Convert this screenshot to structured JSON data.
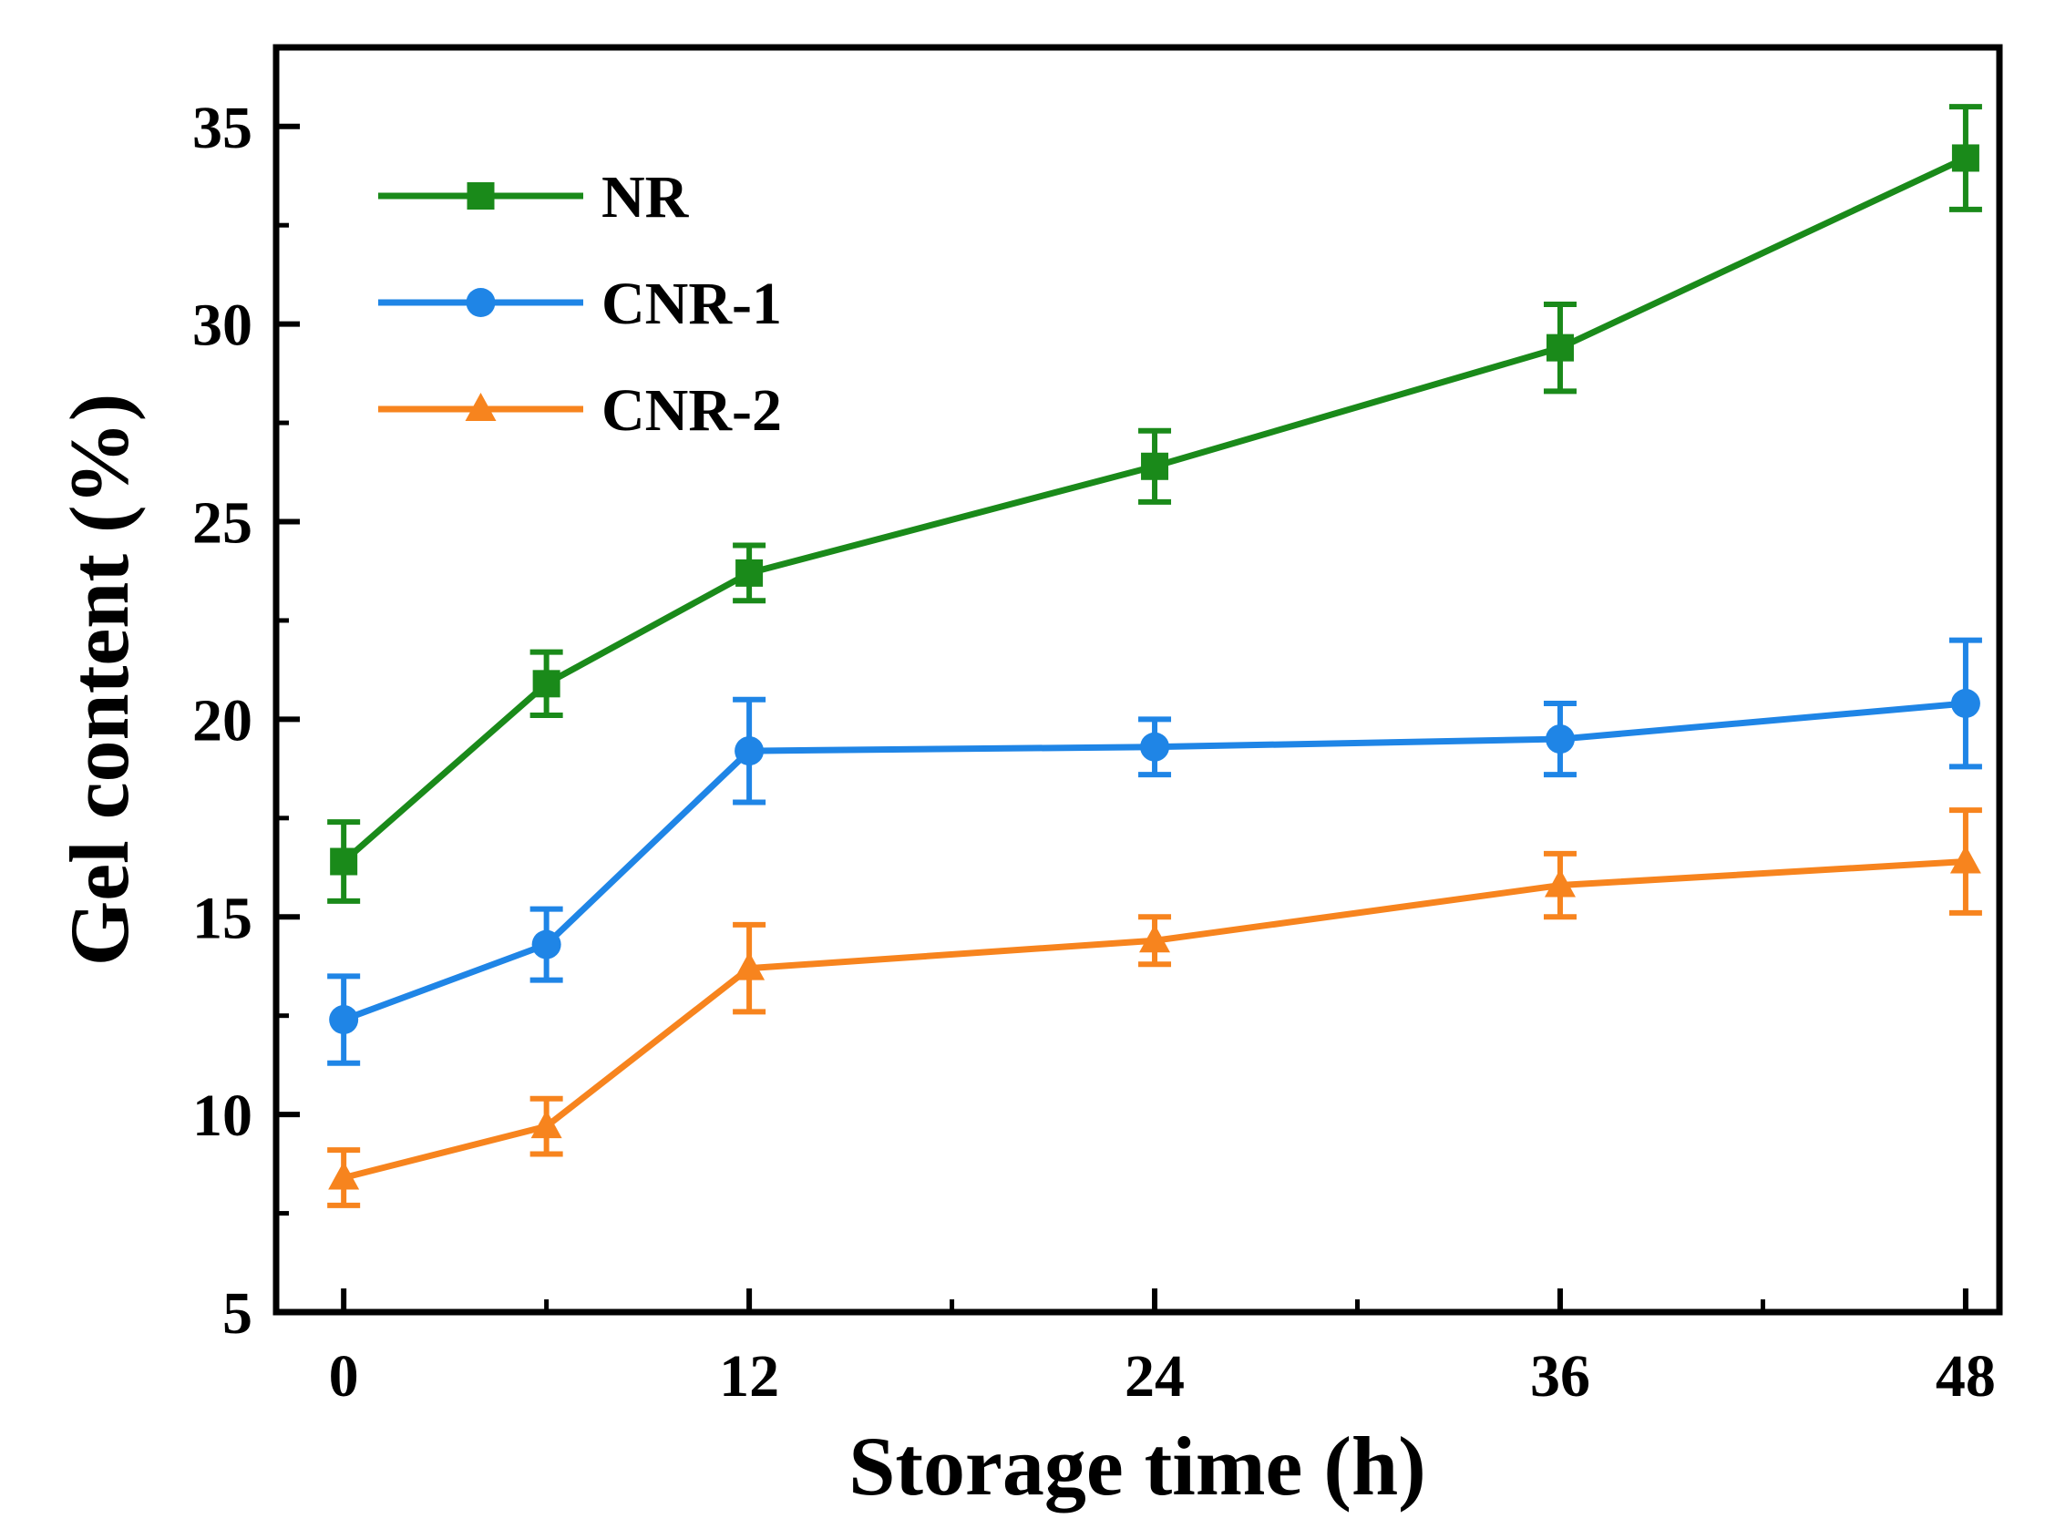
{
  "chart_data": {
    "type": "line",
    "title": "",
    "xlabel": "Storage time (h)",
    "ylabel": "Gel content (%)",
    "xlim": [
      -2,
      49
    ],
    "ylim": [
      5,
      37
    ],
    "x_ticks": [
      0,
      12,
      24,
      36,
      48
    ],
    "x_tick_labels": [
      "0",
      "12",
      "24",
      "36",
      "48"
    ],
    "x_minor_ticks": [
      6,
      18,
      30,
      42
    ],
    "y_ticks": [
      5,
      10,
      15,
      20,
      25,
      30,
      35
    ],
    "y_tick_labels": [
      "5",
      "10",
      "15",
      "20",
      "25",
      "30",
      "35"
    ],
    "grid": false,
    "legend_position": "top-left",
    "x": [
      0,
      6,
      12,
      24,
      36,
      48
    ],
    "series": [
      {
        "name": "NR",
        "color": "#1a8a1a",
        "marker": "square",
        "values": [
          16.4,
          20.9,
          23.7,
          26.4,
          29.4,
          34.2
        ],
        "errors": [
          1.0,
          0.8,
          0.7,
          0.9,
          1.1,
          1.3
        ]
      },
      {
        "name": "CNR-1",
        "color": "#1f85e6",
        "marker": "circle",
        "values": [
          12.4,
          14.3,
          19.2,
          19.3,
          19.5,
          20.4
        ],
        "errors": [
          1.1,
          0.9,
          1.3,
          0.7,
          0.9,
          1.6
        ]
      },
      {
        "name": "CNR-2",
        "color": "#f7841e",
        "marker": "triangle",
        "values": [
          8.4,
          9.7,
          13.7,
          14.4,
          15.8,
          16.4
        ],
        "errors": [
          0.7,
          0.7,
          1.1,
          0.6,
          0.8,
          1.3
        ]
      }
    ]
  }
}
